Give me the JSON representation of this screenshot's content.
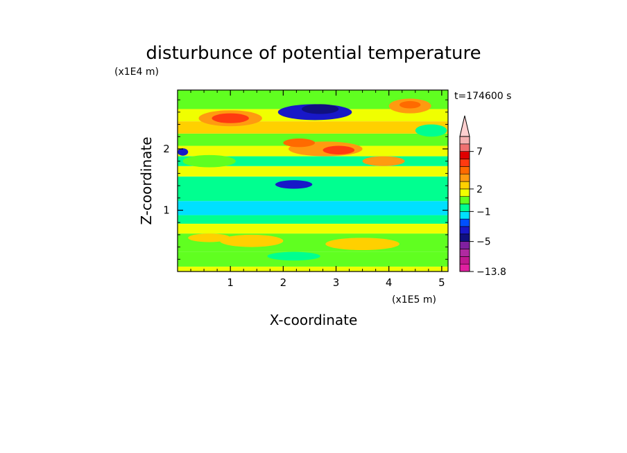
{
  "chart_data": {
    "type": "heatmap",
    "title": "disturbunce of potential temperature",
    "time_label": "t=174600 s",
    "xlabel": "X-coordinate",
    "ylabel": "Z-coordinate",
    "x_unit": "(x1E5 m)",
    "y_unit": "(x1E4 m)",
    "xlim": [
      0,
      5.12
    ],
    "ylim": [
      0,
      2.96
    ],
    "x_ticks": [
      "1",
      "2",
      "3",
      "4",
      "5"
    ],
    "y_ticks": [
      "1",
      "2"
    ],
    "colorbar": {
      "labels": [
        "7",
        "2",
        "−1",
        "−5",
        "−13.8"
      ],
      "label_levels": [
        7,
        2,
        -1,
        -5,
        -13.8
      ],
      "levels": [
        -13.8,
        -11,
        -9,
        -7,
        -5,
        -4,
        -3,
        -2,
        -1,
        0,
        1,
        2,
        3,
        4,
        5,
        6,
        7,
        8,
        10,
        12
      ],
      "colors": [
        "#e020a0",
        "#c01890",
        "#b02aa0",
        "#8020a0",
        "#101080",
        "#1818c8",
        "#0050ff",
        "#00e0ff",
        "#00ff90",
        "#60ff20",
        "#f0ff00",
        "#ffd000",
        "#ff9a10",
        "#ff6a00",
        "#ff3a10",
        "#e00000",
        "#f07070",
        "#f5b0b0",
        "#ffd0d0"
      ],
      "extend_max": true
    },
    "field_bands": [
      {
        "z": [
          0.0,
          0.08
        ],
        "level": 1
      },
      {
        "z": [
          0.08,
          0.32
        ],
        "level": 0.5
      },
      {
        "z": [
          0.32,
          0.62
        ],
        "level": 0.3
      },
      {
        "z": [
          0.62,
          0.78
        ],
        "level": 1
      },
      {
        "z": [
          0.78,
          0.92
        ],
        "level": -0.5
      },
      {
        "z": [
          0.92,
          1.15
        ],
        "level": -1.5
      },
      {
        "z": [
          1.15,
          1.35
        ],
        "level": -1
      },
      {
        "z": [
          1.35,
          1.55
        ],
        "level": -0.5
      },
      {
        "z": [
          1.55,
          1.72
        ],
        "level": 1
      },
      {
        "z": [
          1.72,
          1.88
        ],
        "level": -0.5
      },
      {
        "z": [
          1.88,
          2.05
        ],
        "level": 1.5
      },
      {
        "z": [
          2.05,
          2.25
        ],
        "level": 0.5
      },
      {
        "z": [
          2.25,
          2.45
        ],
        "level": 2
      },
      {
        "z": [
          2.45,
          2.65
        ],
        "level": 1
      },
      {
        "z": [
          2.65,
          2.96
        ],
        "level": 0
      }
    ],
    "field_features": [
      {
        "x": 1.0,
        "z": 2.5,
        "rx": 0.6,
        "rz": 0.13,
        "level": 3
      },
      {
        "x": 1.0,
        "z": 2.5,
        "rx": 0.35,
        "rz": 0.08,
        "level": 5
      },
      {
        "x": 2.6,
        "z": 2.6,
        "rx": 0.7,
        "rz": 0.13,
        "level": -4
      },
      {
        "x": 2.7,
        "z": 2.65,
        "rx": 0.35,
        "rz": 0.08,
        "level": -5
      },
      {
        "x": 4.4,
        "z": 2.7,
        "rx": 0.4,
        "rz": 0.12,
        "level": 3
      },
      {
        "x": 4.4,
        "z": 2.72,
        "rx": 0.2,
        "rz": 0.06,
        "level": 4
      },
      {
        "x": 2.8,
        "z": 2.0,
        "rx": 0.7,
        "rz": 0.12,
        "level": 3
      },
      {
        "x": 3.05,
        "z": 1.98,
        "rx": 0.3,
        "rz": 0.07,
        "level": 5
      },
      {
        "x": 2.3,
        "z": 2.1,
        "rx": 0.3,
        "rz": 0.07,
        "level": 4
      },
      {
        "x": 3.9,
        "z": 1.8,
        "rx": 0.4,
        "rz": 0.08,
        "level": 3
      },
      {
        "x": 2.2,
        "z": 1.42,
        "rx": 0.35,
        "rz": 0.07,
        "level": -4
      },
      {
        "x": 0.1,
        "z": 1.95,
        "rx": 0.1,
        "rz": 0.06,
        "level": -4
      },
      {
        "x": 0.6,
        "z": 1.8,
        "rx": 0.5,
        "rz": 0.1,
        "level": 0
      },
      {
        "x": 4.8,
        "z": 2.3,
        "rx": 0.3,
        "rz": 0.1,
        "level": -1
      },
      {
        "x": 1.4,
        "z": 0.5,
        "rx": 0.6,
        "rz": 0.1,
        "level": 2
      },
      {
        "x": 3.5,
        "z": 0.45,
        "rx": 0.7,
        "rz": 0.1,
        "level": 2
      },
      {
        "x": 0.6,
        "z": 0.55,
        "rx": 0.4,
        "rz": 0.07,
        "level": 2
      },
      {
        "x": 2.2,
        "z": 0.25,
        "rx": 0.5,
        "rz": 0.07,
        "level": -0.5
      }
    ]
  }
}
